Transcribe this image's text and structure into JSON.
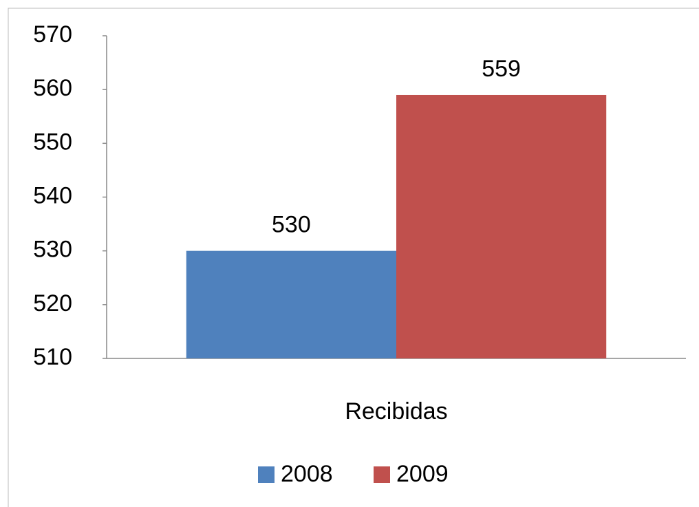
{
  "chart_data": {
    "type": "bar",
    "categories": [
      "Recibidas"
    ],
    "series": [
      {
        "name": "2008",
        "color": "#4f81bd",
        "values": [
          530
        ]
      },
      {
        "name": "2009",
        "color": "#c0504d",
        "values": [
          559
        ]
      }
    ],
    "ylim": [
      510,
      570
    ],
    "yticks": [
      510,
      520,
      530,
      540,
      550,
      560,
      570
    ],
    "grid": false,
    "legend": "bottom",
    "data_labels": true
  }
}
